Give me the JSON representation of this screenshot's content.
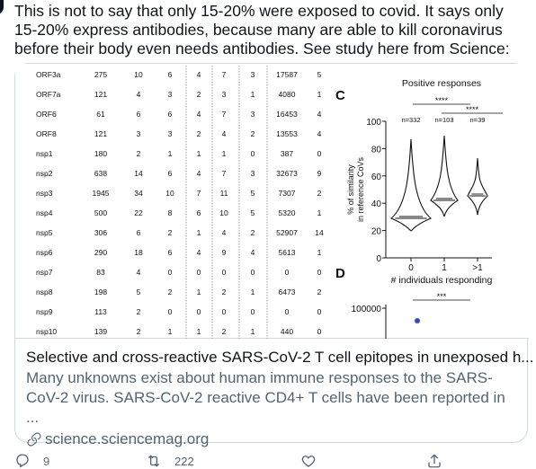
{
  "tweet": {
    "text": "This is not to say that only 15-20% were exposed to covid. It says only 15-20% express antibodies, because many are able to kill coronavirus before their body even needs antibodies. See study here from Science:"
  },
  "card": {
    "title": "Selective and cross-reactive SARS-CoV-2 T cell epitopes in unexposed h...",
    "description": "Many unknowns exist about human immune responses to the SARS-CoV-2 virus. SARS-CoV-2 reactive CD4+ T cells have been reported in ...",
    "domain": "science.sciencemag.org",
    "link_icon": "link-icon"
  },
  "figure": {
    "table_rows": [
      {
        "name": "ORF3a",
        "v": [
          "275",
          "10",
          "6",
          "4",
          "7",
          "3",
          "17587",
          "5"
        ]
      },
      {
        "name": "ORF7a",
        "v": [
          "121",
          "4",
          "3",
          "2",
          "3",
          "1",
          "4080",
          "1"
        ]
      },
      {
        "name": "ORF6",
        "v": [
          "61",
          "6",
          "6",
          "4",
          "7",
          "3",
          "16453",
          "4"
        ]
      },
      {
        "name": "ORF8",
        "v": [
          "121",
          "3",
          "3",
          "2",
          "4",
          "2",
          "13553",
          "4"
        ]
      },
      {
        "name": "nsp1",
        "v": [
          "180",
          "2",
          "1",
          "1",
          "1",
          "0",
          "387",
          "0"
        ]
      },
      {
        "name": "nsp2",
        "v": [
          "638",
          "14",
          "6",
          "4",
          "7",
          "3",
          "32673",
          "9"
        ]
      },
      {
        "name": "nsp3",
        "v": [
          "1945",
          "34",
          "10",
          "7",
          "11",
          "5",
          "7307",
          "2"
        ]
      },
      {
        "name": "nsp4",
        "v": [
          "500",
          "22",
          "8",
          "6",
          "10",
          "5",
          "5320",
          "1"
        ]
      },
      {
        "name": "nsp5",
        "v": [
          "306",
          "6",
          "2",
          "1",
          "4",
          "2",
          "52907",
          "14"
        ]
      },
      {
        "name": "nsp6",
        "v": [
          "290",
          "18",
          "6",
          "4",
          "9",
          "4",
          "5613",
          "1"
        ]
      },
      {
        "name": "nsp7",
        "v": [
          "83",
          "4",
          "0",
          "0",
          "0",
          "0",
          "0",
          "0"
        ]
      },
      {
        "name": "nsp8",
        "v": [
          "198",
          "5",
          "2",
          "1",
          "2",
          "1",
          "6473",
          "2"
        ]
      },
      {
        "name": "nsp9",
        "v": [
          "113",
          "2",
          "0",
          "0",
          "0",
          "0",
          "0",
          "0"
        ]
      },
      {
        "name": "nsp10",
        "v": [
          "139",
          "2",
          "1",
          "1",
          "2",
          "1",
          "440",
          "0"
        ]
      }
    ],
    "panel_c": {
      "label": "C",
      "title": "Positive responses",
      "sig1": "****",
      "sig2": "****",
      "n_labels": [
        "n=332",
        "n=103",
        "n=39"
      ],
      "y_label_1": "% of similarity",
      "y_label_2": "in reference CoVs",
      "y_ticks": [
        "100",
        "80",
        "60",
        "40",
        "20",
        "0"
      ],
      "x_ticks": [
        "0",
        "1",
        ">1"
      ],
      "x_label": "# individuals responding"
    },
    "panel_d": {
      "label": "D",
      "sig": "***",
      "y_tick": "100000"
    }
  },
  "actions": {
    "reply_count": "9",
    "retweet_count": "222",
    "like_count": "",
    "share_label": ""
  }
}
